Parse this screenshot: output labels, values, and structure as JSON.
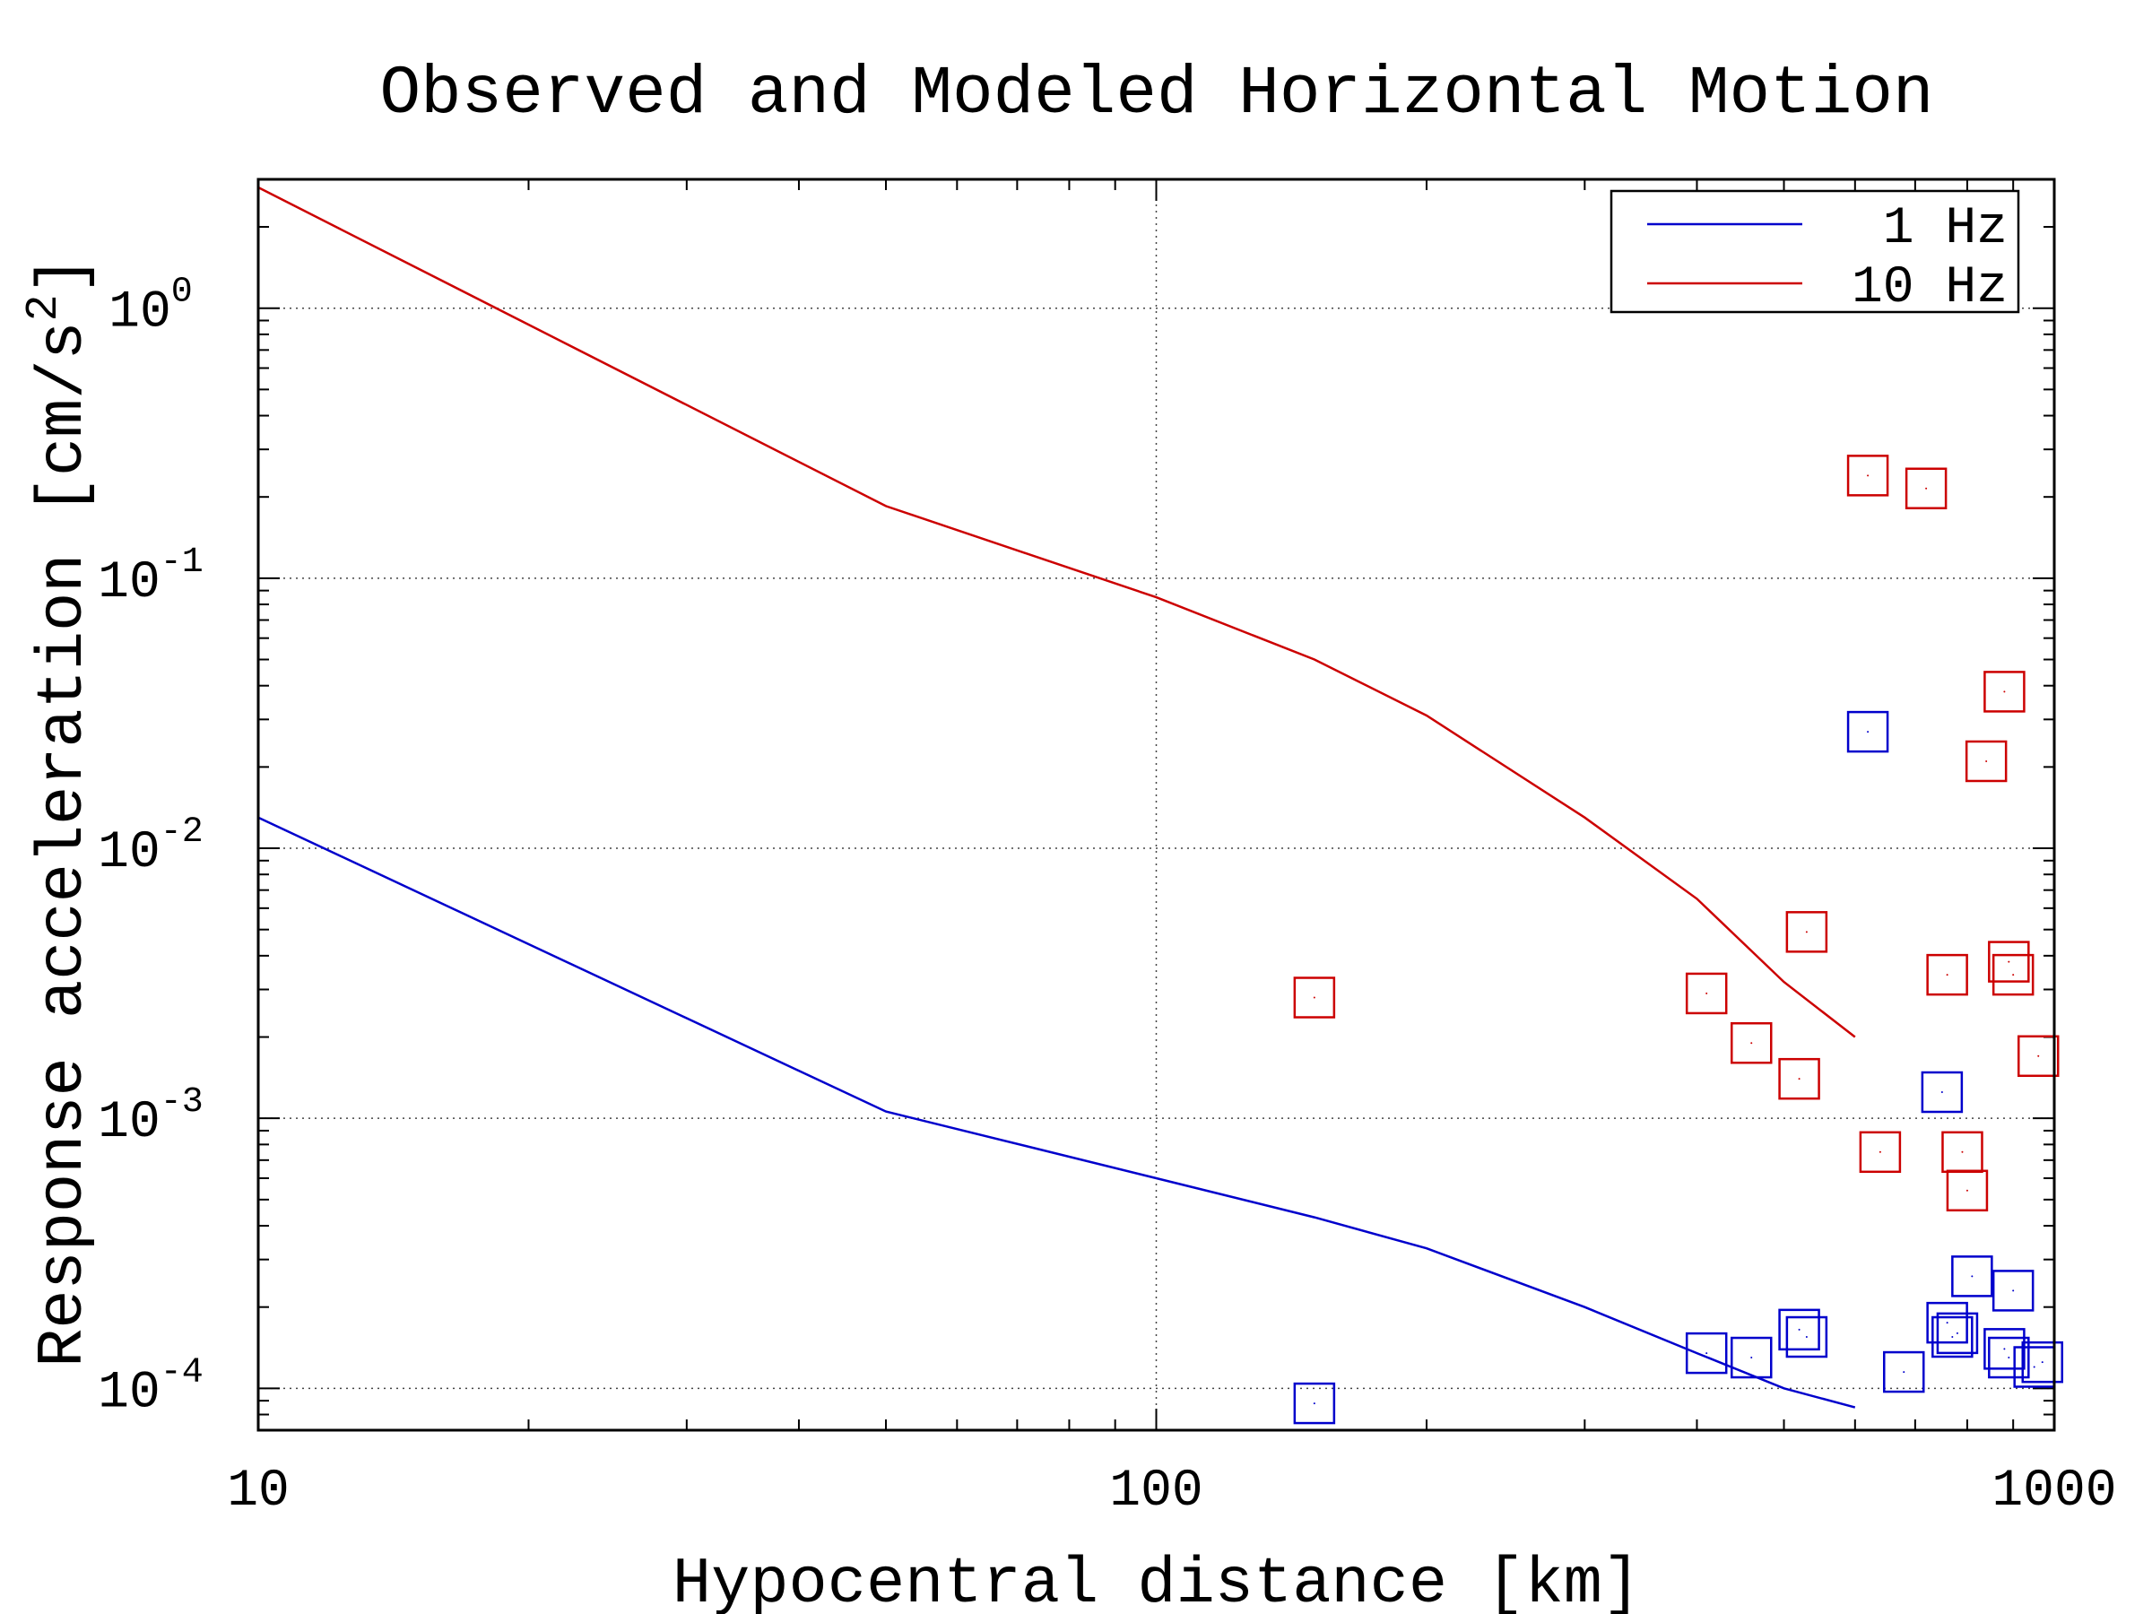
{
  "chart_data": {
    "type": "scatter",
    "title": "Observed and Modeled Horizontal Motion",
    "xlabel": "Hypocentral distance [km]",
    "ylabel_text": "Response acceleration [cm/s",
    "ylabel_sup": "2",
    "ylabel_close": "]",
    "xscale": "log",
    "yscale": "log",
    "xlim": [
      10,
      1000
    ],
    "ylim": [
      7e-05,
      3
    ],
    "x_ticks": [
      {
        "value": 10,
        "label": "10"
      },
      {
        "value": 100,
        "label": "100"
      },
      {
        "value": 1000,
        "label": "1000"
      }
    ],
    "y_ticks": [
      {
        "value": 0.0001,
        "base": "10",
        "exp": "-4"
      },
      {
        "value": 0.001,
        "base": "10",
        "exp": "-3"
      },
      {
        "value": 0.01,
        "base": "10",
        "exp": "-2"
      },
      {
        "value": 0.1,
        "base": "10",
        "exp": "-1"
      },
      {
        "value": 1,
        "base": "10",
        "exp": "0"
      }
    ],
    "grid": true,
    "legend_position": "top-right",
    "series": [
      {
        "name": "1 Hz",
        "color": "#0000cc",
        "line": {
          "x": [
            10,
            50,
            100,
            150,
            200,
            300,
            400,
            500,
            600
          ],
          "y": [
            0.013,
            0.00106,
            0.0006,
            0.00043,
            0.00033,
            0.0002,
            0.000135,
            0.0001,
            8.5e-05
          ]
        },
        "observed": {
          "x": [
            150,
            410,
            460,
            520,
            530,
            620,
            680,
            750,
            760,
            770,
            780,
            810,
            900,
            880,
            890,
            950,
            970
          ],
          "y": [
            8.8e-05,
            0.000135,
            0.00013,
            0.000165,
            0.000155,
            0.027,
            0.000115,
            0.00125,
            0.000175,
            0.000155,
            0.00016,
            0.00026,
            0.00023,
            0.00014,
            0.00013,
            0.00012,
            0.000125
          ]
        }
      },
      {
        "name": "10 Hz",
        "color": "#cc0000",
        "line": {
          "x": [
            10,
            50,
            100,
            150,
            200,
            300,
            400,
            500,
            600
          ],
          "y": [
            2.8,
            0.185,
            0.085,
            0.05,
            0.031,
            0.013,
            0.0065,
            0.0032,
            0.002
          ]
        },
        "observed": {
          "x": [
            150,
            410,
            460,
            520,
            530,
            620,
            640,
            720,
            760,
            790,
            800,
            840,
            880,
            890,
            900,
            960
          ],
          "y": [
            0.0028,
            0.0029,
            0.0019,
            0.0014,
            0.0049,
            0.24,
            0.00075,
            0.215,
            0.0034,
            0.00075,
            0.00054,
            0.021,
            0.038,
            0.0038,
            0.0034,
            0.0017
          ]
        }
      }
    ]
  }
}
